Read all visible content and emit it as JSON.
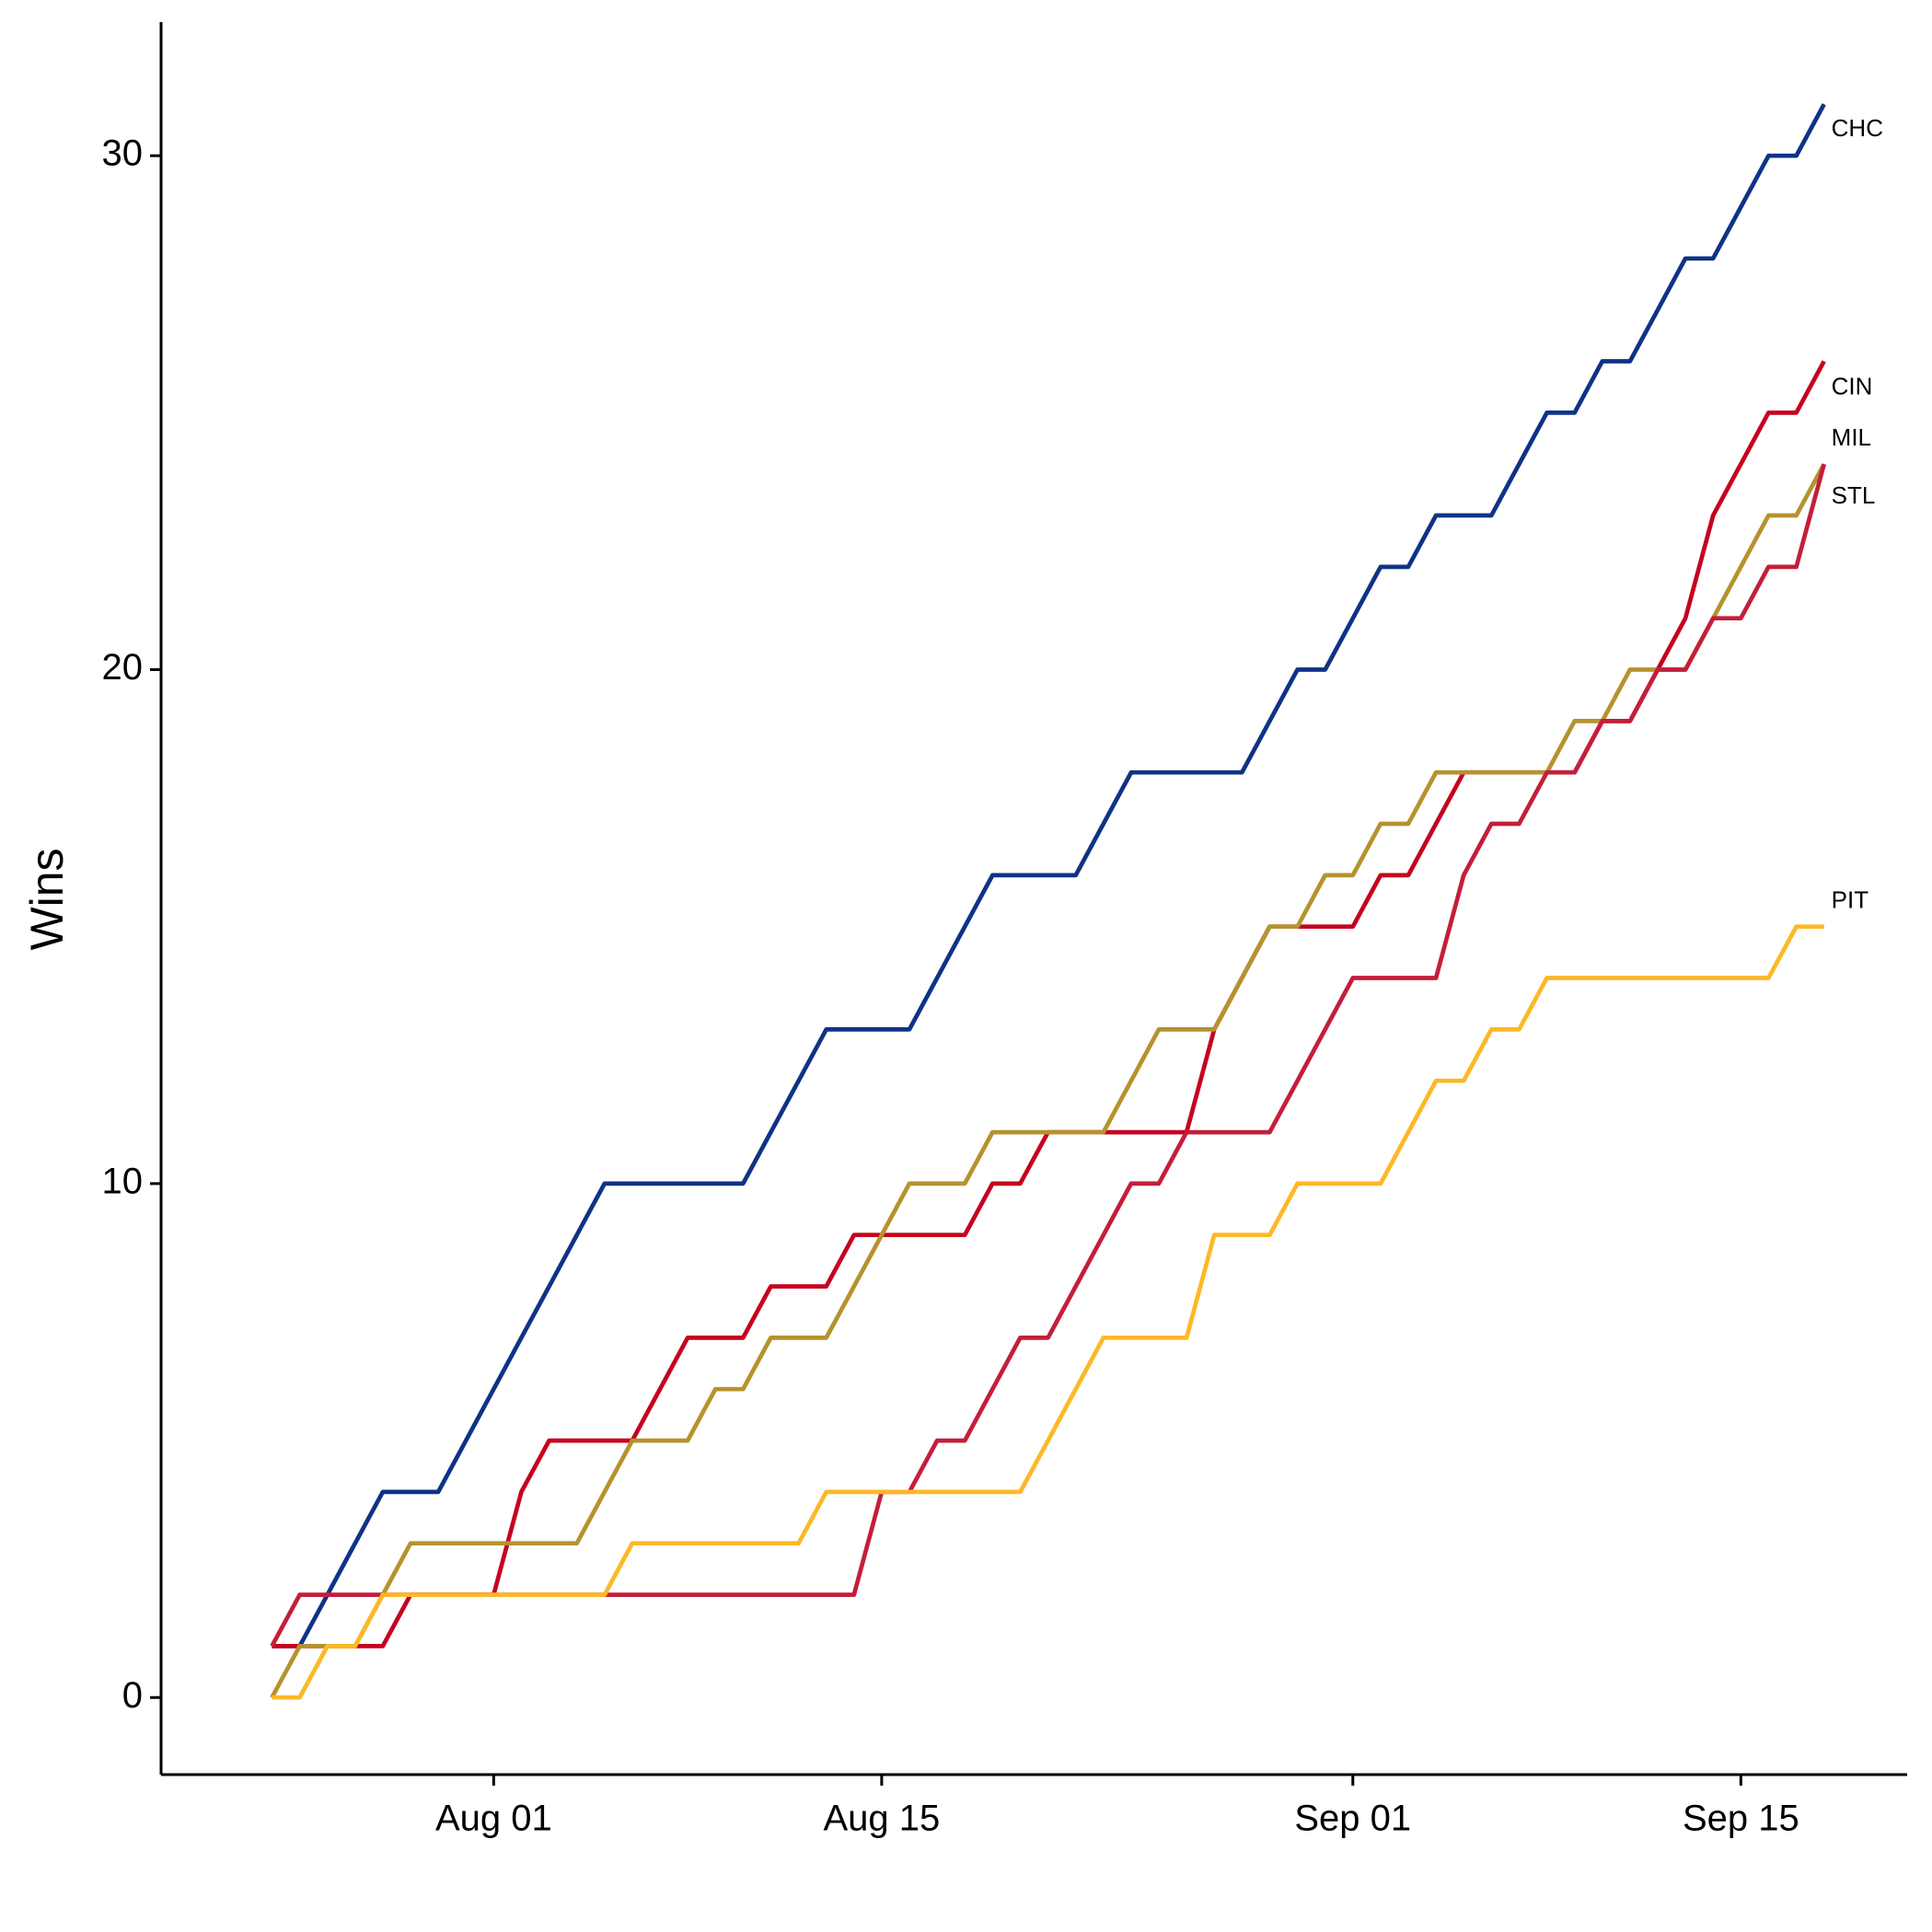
{
  "chart_data": {
    "type": "line",
    "ylabel": "Wins",
    "x": [
      "07-24",
      "07-25",
      "07-26",
      "07-27",
      "07-28",
      "07-29",
      "07-30",
      "07-31",
      "08-01",
      "08-02",
      "08-03",
      "08-04",
      "08-05",
      "08-06",
      "08-07",
      "08-08",
      "08-09",
      "08-10",
      "08-11",
      "08-12",
      "08-13",
      "08-14",
      "08-15",
      "08-16",
      "08-17",
      "08-18",
      "08-19",
      "08-20",
      "08-21",
      "08-22",
      "08-23",
      "08-24",
      "08-25",
      "08-26",
      "08-27",
      "08-28",
      "08-29",
      "08-30",
      "08-31",
      "09-01",
      "09-02",
      "09-03",
      "09-04",
      "09-05",
      "09-06",
      "09-07",
      "09-08",
      "09-09",
      "09-10",
      "09-11",
      "09-12",
      "09-13",
      "09-14",
      "09-15",
      "09-16",
      "09-17",
      "09-18"
    ],
    "series": [
      {
        "name": "CHC",
        "color": "#0E3386",
        "values": [
          1,
          1,
          2,
          3,
          4,
          4,
          4,
          5,
          6,
          7,
          8,
          9,
          10,
          10,
          10,
          10,
          10,
          10,
          11,
          12,
          13,
          13,
          13,
          13,
          14,
          15,
          16,
          16,
          16,
          16,
          17,
          18,
          18,
          18,
          18,
          18,
          19,
          20,
          20,
          21,
          22,
          22,
          23,
          23,
          23,
          24,
          25,
          25,
          26,
          26,
          27,
          28,
          28,
          29,
          30,
          30,
          31
        ]
      },
      {
        "name": "CIN",
        "color": "#C6011F",
        "values": [
          1,
          1,
          1,
          1,
          1,
          2,
          2,
          2,
          2,
          4,
          5,
          5,
          5,
          5,
          6,
          7,
          7,
          7,
          8,
          8,
          8,
          9,
          9,
          9,
          9,
          9,
          10,
          10,
          11,
          11,
          11,
          11,
          11,
          11,
          13,
          14,
          15,
          15,
          15,
          15,
          16,
          16,
          17,
          18,
          18,
          18,
          18,
          18,
          19,
          19,
          20,
          21,
          23,
          24,
          25,
          25,
          26
        ]
      },
      {
        "name": "MIL",
        "color": "#B6922E",
        "values": [
          0,
          1,
          1,
          1,
          2,
          3,
          3,
          3,
          3,
          3,
          3,
          3,
          4,
          5,
          5,
          5,
          6,
          6,
          7,
          7,
          7,
          8,
          9,
          10,
          10,
          10,
          11,
          11,
          11,
          11,
          11,
          12,
          13,
          13,
          13,
          14,
          15,
          15,
          16,
          16,
          17,
          17,
          18,
          18,
          18,
          18,
          18,
          19,
          19,
          20,
          20,
          20,
          21,
          22,
          23,
          23,
          24
        ]
      },
      {
        "name": "STL",
        "color": "#C41E3A",
        "values": [
          1,
          2,
          2,
          2,
          2,
          2,
          2,
          2,
          2,
          2,
          2,
          2,
          2,
          2,
          2,
          2,
          2,
          2,
          2,
          2,
          2,
          2,
          4,
          4,
          5,
          5,
          6,
          7,
          7,
          8,
          9,
          10,
          10,
          11,
          11,
          11,
          11,
          12,
          13,
          14,
          14,
          14,
          14,
          16,
          17,
          17,
          18,
          18,
          19,
          19,
          20,
          20,
          21,
          21,
          22,
          22,
          24
        ]
      },
      {
        "name": "PIT",
        "color": "#FDB827",
        "values": [
          0,
          0,
          1,
          1,
          2,
          2,
          2,
          2,
          2,
          2,
          2,
          2,
          2,
          3,
          3,
          3,
          3,
          3,
          3,
          3,
          4,
          4,
          4,
          4,
          4,
          4,
          4,
          4,
          5,
          6,
          7,
          7,
          7,
          7,
          9,
          9,
          9,
          10,
          10,
          10,
          10,
          11,
          12,
          12,
          13,
          13,
          14,
          14,
          14,
          14,
          14,
          14,
          14,
          14,
          14,
          15,
          15
        ]
      }
    ],
    "xlim": [
      "07-20",
      "09-21"
    ],
    "xticks": [
      {
        "value": "08-01",
        "label": "Aug 01"
      },
      {
        "value": "08-15",
        "label": "Aug 15"
      },
      {
        "value": "09-01",
        "label": "Sep 01"
      },
      {
        "value": "09-15",
        "label": "Sep 15"
      }
    ],
    "ylim": [
      -1.5,
      32.6
    ],
    "yticks": [
      0,
      10,
      20,
      30
    ],
    "grid": false
  }
}
